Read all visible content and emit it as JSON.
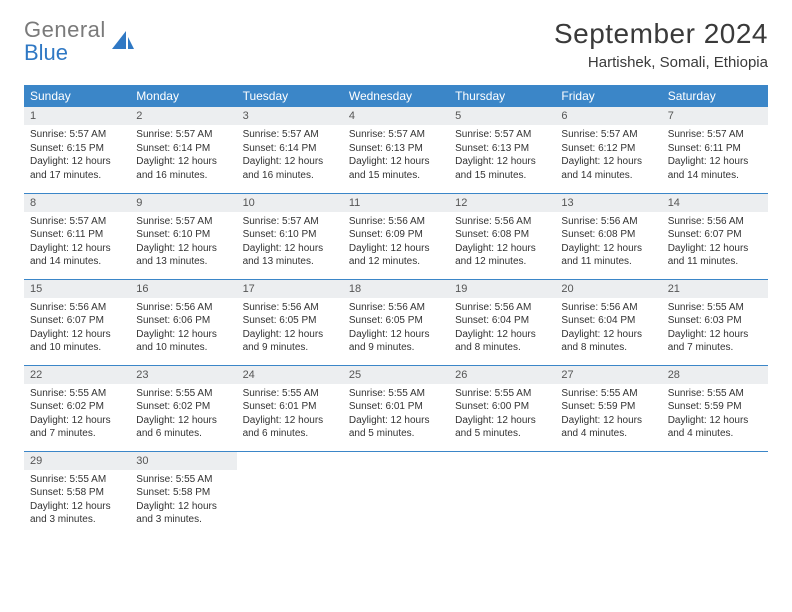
{
  "brand": {
    "line1": "General",
    "line2": "Blue"
  },
  "title": "September 2024",
  "location": "Hartishek, Somali, Ethiopia",
  "colors": {
    "header_bg": "#3b86c8",
    "header_text": "#ffffff",
    "daynum_bg": "#eceef0",
    "row_border": "#3b86c8",
    "brand_gray": "#7a7a7a",
    "brand_blue": "#2f78c4"
  },
  "weekdays": [
    "Sunday",
    "Monday",
    "Tuesday",
    "Wednesday",
    "Thursday",
    "Friday",
    "Saturday"
  ],
  "days": [
    {
      "n": "1",
      "sr": "5:57 AM",
      "ss": "6:15 PM",
      "dl": "12 hours and 17 minutes."
    },
    {
      "n": "2",
      "sr": "5:57 AM",
      "ss": "6:14 PM",
      "dl": "12 hours and 16 minutes."
    },
    {
      "n": "3",
      "sr": "5:57 AM",
      "ss": "6:14 PM",
      "dl": "12 hours and 16 minutes."
    },
    {
      "n": "4",
      "sr": "5:57 AM",
      "ss": "6:13 PM",
      "dl": "12 hours and 15 minutes."
    },
    {
      "n": "5",
      "sr": "5:57 AM",
      "ss": "6:13 PM",
      "dl": "12 hours and 15 minutes."
    },
    {
      "n": "6",
      "sr": "5:57 AM",
      "ss": "6:12 PM",
      "dl": "12 hours and 14 minutes."
    },
    {
      "n": "7",
      "sr": "5:57 AM",
      "ss": "6:11 PM",
      "dl": "12 hours and 14 minutes."
    },
    {
      "n": "8",
      "sr": "5:57 AM",
      "ss": "6:11 PM",
      "dl": "12 hours and 14 minutes."
    },
    {
      "n": "9",
      "sr": "5:57 AM",
      "ss": "6:10 PM",
      "dl": "12 hours and 13 minutes."
    },
    {
      "n": "10",
      "sr": "5:57 AM",
      "ss": "6:10 PM",
      "dl": "12 hours and 13 minutes."
    },
    {
      "n": "11",
      "sr": "5:56 AM",
      "ss": "6:09 PM",
      "dl": "12 hours and 12 minutes."
    },
    {
      "n": "12",
      "sr": "5:56 AM",
      "ss": "6:08 PM",
      "dl": "12 hours and 12 minutes."
    },
    {
      "n": "13",
      "sr": "5:56 AM",
      "ss": "6:08 PM",
      "dl": "12 hours and 11 minutes."
    },
    {
      "n": "14",
      "sr": "5:56 AM",
      "ss": "6:07 PM",
      "dl": "12 hours and 11 minutes."
    },
    {
      "n": "15",
      "sr": "5:56 AM",
      "ss": "6:07 PM",
      "dl": "12 hours and 10 minutes."
    },
    {
      "n": "16",
      "sr": "5:56 AM",
      "ss": "6:06 PM",
      "dl": "12 hours and 10 minutes."
    },
    {
      "n": "17",
      "sr": "5:56 AM",
      "ss": "6:05 PM",
      "dl": "12 hours and 9 minutes."
    },
    {
      "n": "18",
      "sr": "5:56 AM",
      "ss": "6:05 PM",
      "dl": "12 hours and 9 minutes."
    },
    {
      "n": "19",
      "sr": "5:56 AM",
      "ss": "6:04 PM",
      "dl": "12 hours and 8 minutes."
    },
    {
      "n": "20",
      "sr": "5:56 AM",
      "ss": "6:04 PM",
      "dl": "12 hours and 8 minutes."
    },
    {
      "n": "21",
      "sr": "5:55 AM",
      "ss": "6:03 PM",
      "dl": "12 hours and 7 minutes."
    },
    {
      "n": "22",
      "sr": "5:55 AM",
      "ss": "6:02 PM",
      "dl": "12 hours and 7 minutes."
    },
    {
      "n": "23",
      "sr": "5:55 AM",
      "ss": "6:02 PM",
      "dl": "12 hours and 6 minutes."
    },
    {
      "n": "24",
      "sr": "5:55 AM",
      "ss": "6:01 PM",
      "dl": "12 hours and 6 minutes."
    },
    {
      "n": "25",
      "sr": "5:55 AM",
      "ss": "6:01 PM",
      "dl": "12 hours and 5 minutes."
    },
    {
      "n": "26",
      "sr": "5:55 AM",
      "ss": "6:00 PM",
      "dl": "12 hours and 5 minutes."
    },
    {
      "n": "27",
      "sr": "5:55 AM",
      "ss": "5:59 PM",
      "dl": "12 hours and 4 minutes."
    },
    {
      "n": "28",
      "sr": "5:55 AM",
      "ss": "5:59 PM",
      "dl": "12 hours and 4 minutes."
    },
    {
      "n": "29",
      "sr": "5:55 AM",
      "ss": "5:58 PM",
      "dl": "12 hours and 3 minutes."
    },
    {
      "n": "30",
      "sr": "5:55 AM",
      "ss": "5:58 PM",
      "dl": "12 hours and 3 minutes."
    }
  ],
  "labels": {
    "sunrise": "Sunrise:",
    "sunset": "Sunset:",
    "daylight": "Daylight:"
  },
  "layout": {
    "leading_blanks": 0,
    "rows": 5,
    "cols": 7
  }
}
